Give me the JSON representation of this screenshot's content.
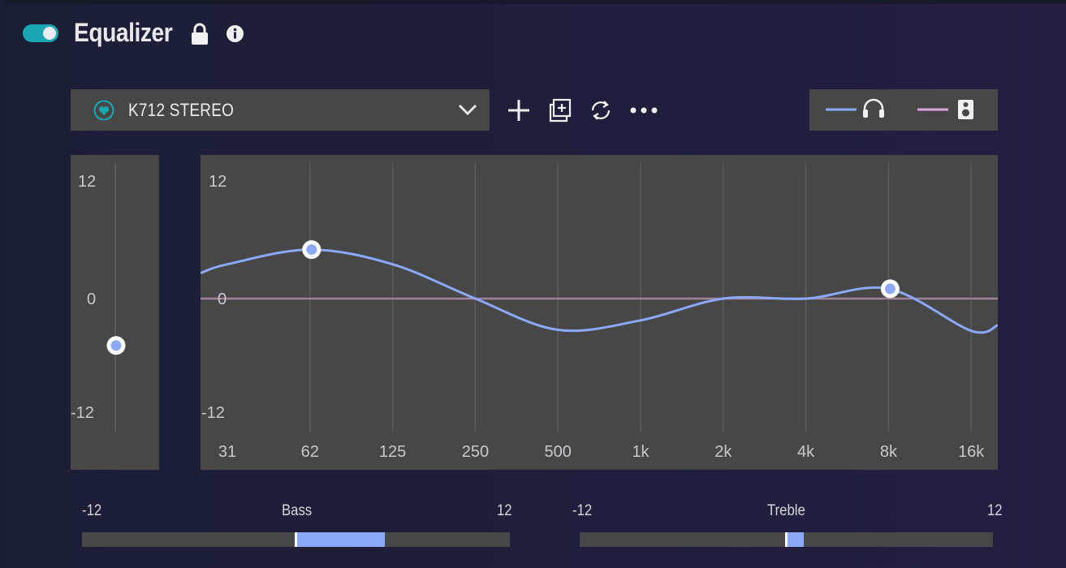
{
  "header": {
    "title": "Equalizer",
    "enabled": true
  },
  "icons": {
    "lock": "lock-icon",
    "info": "info-icon",
    "heart": "heart-icon",
    "chevron": "chevron-down-icon",
    "add": "plus-icon",
    "duplicate": "duplicate-icon",
    "swap": "swap-icon",
    "more": "more-icon",
    "headphones": "headphones-icon",
    "speaker": "speaker-icon"
  },
  "preset": {
    "name": "K712 STEREO"
  },
  "colors": {
    "accent": "#19a7b3",
    "curve": "#8ba8f9",
    "speaker_line": "#d9a6e0",
    "panel": "#474747"
  },
  "preamp": {
    "max_label": "12",
    "zero_label": "0",
    "min_label": "-12",
    "value": -5
  },
  "eq": {
    "y_labels": [
      "12",
      "0",
      "-12"
    ],
    "x_labels": [
      "31",
      "62",
      "125",
      "250",
      "500",
      "1k",
      "2k",
      "4k",
      "8k",
      "16k"
    ],
    "ylim": [
      -12,
      12
    ],
    "handles": [
      {
        "freq": "62",
        "gain": 5
      },
      {
        "freq": "8k",
        "gain": 1
      }
    ],
    "curve_gain": [
      3.5,
      5,
      3.5,
      0,
      -3.3,
      -2.3,
      0,
      0,
      1,
      -3.4
    ]
  },
  "bass": {
    "label": "Bass",
    "min_label": "-12",
    "max_label": "12",
    "value": 5
  },
  "treble": {
    "label": "Treble",
    "min_label": "-12",
    "max_label": "12",
    "value": 1
  }
}
